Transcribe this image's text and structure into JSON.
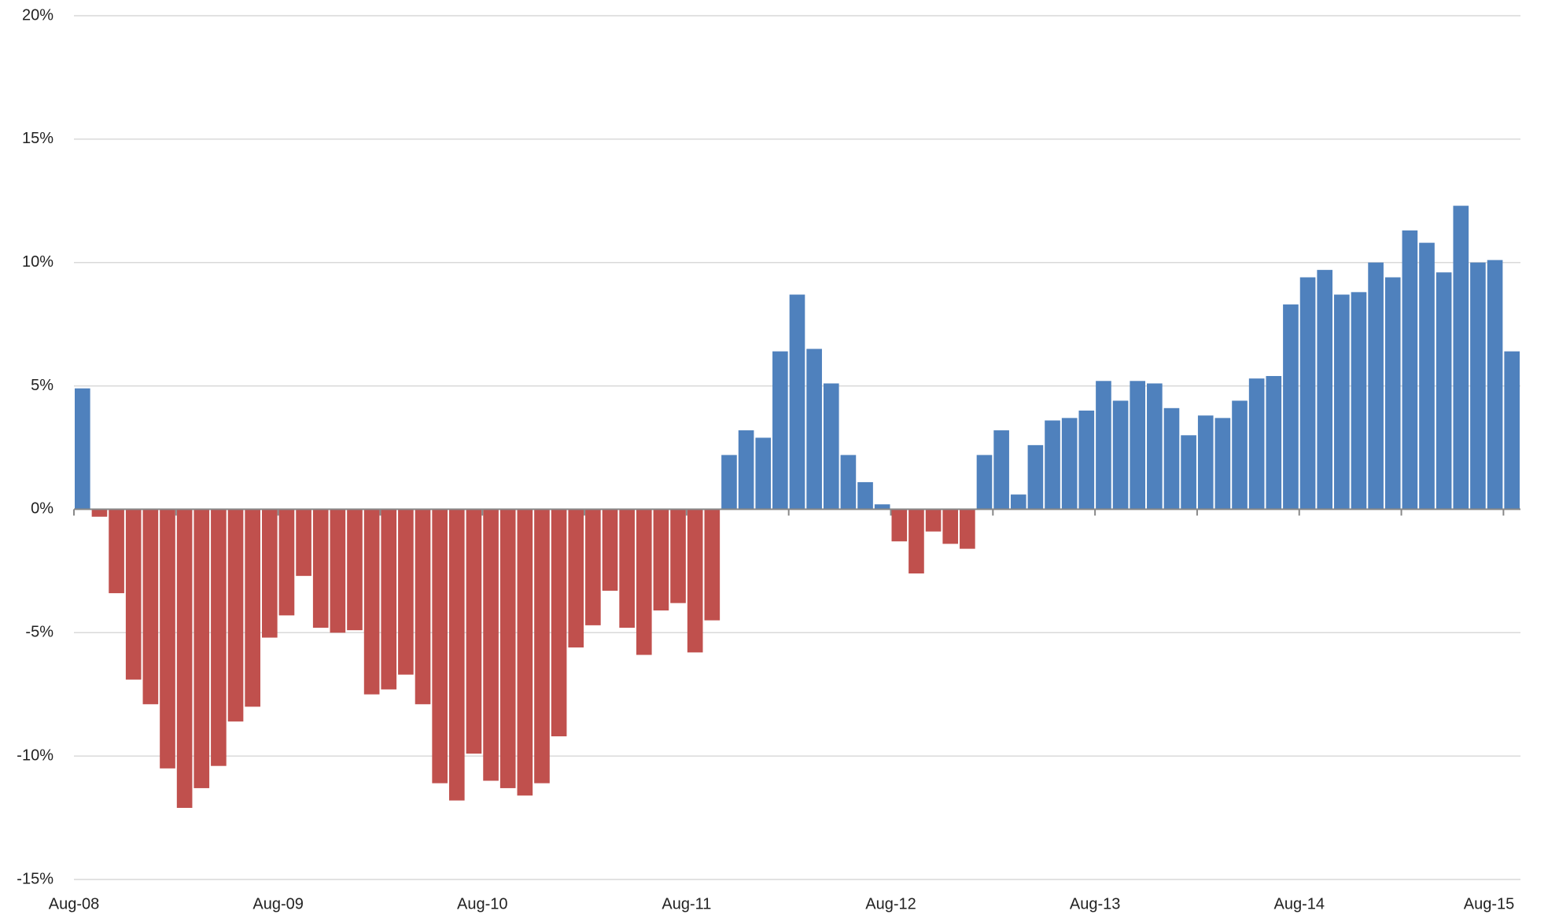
{
  "chart_data": {
    "type": "bar",
    "categories": [
      "Aug-08",
      null,
      null,
      null,
      null,
      null,
      null,
      null,
      null,
      null,
      null,
      null,
      "Aug-09",
      null,
      null,
      null,
      null,
      null,
      null,
      null,
      null,
      null,
      null,
      null,
      "Aug-10",
      null,
      null,
      null,
      null,
      null,
      null,
      null,
      null,
      null,
      null,
      null,
      "Aug-11",
      null,
      null,
      null,
      null,
      null,
      null,
      null,
      null,
      null,
      null,
      null,
      "Aug-12",
      null,
      null,
      null,
      null,
      null,
      null,
      null,
      null,
      null,
      null,
      null,
      "Aug-13",
      null,
      null,
      null,
      null,
      null,
      null,
      null,
      null,
      null,
      null,
      null,
      "Aug-14",
      null,
      null,
      null,
      null,
      null,
      null,
      null,
      null,
      null,
      null,
      null,
      "Aug-15"
    ],
    "values": [
      4.9,
      -0.3,
      -3.4,
      -6.9,
      -7.9,
      -10.5,
      -12.1,
      -11.3,
      -10.4,
      -8.6,
      -8.0,
      -5.2,
      -4.3,
      -2.7,
      -4.8,
      -5.0,
      -4.9,
      -7.5,
      -7.3,
      -6.7,
      -7.9,
      -11.1,
      -11.8,
      -9.9,
      -11.0,
      -11.3,
      -11.6,
      -11.1,
      -9.2,
      -5.6,
      -4.7,
      -3.3,
      -4.8,
      -5.9,
      -4.1,
      -3.8,
      -5.8,
      -4.5,
      2.2,
      3.2,
      2.9,
      6.4,
      8.7,
      6.5,
      5.1,
      2.2,
      1.1,
      0.2,
      -1.3,
      -2.6,
      -0.9,
      -1.4,
      -1.6,
      2.2,
      3.2,
      0.6,
      2.6,
      3.6,
      3.7,
      4.0,
      5.2,
      4.4,
      5.2,
      5.1,
      4.1,
      3.0,
      3.8,
      3.7,
      4.4,
      5.3,
      5.4,
      8.3,
      9.4,
      9.7,
      8.7,
      8.8,
      10.0,
      9.4,
      11.3,
      10.8,
      9.6,
      12.3,
      10.0,
      10.1,
      6.4
    ],
    "positive_color": "#4f81bd",
    "negative_color": "#c0504d",
    "negative_tick_color": "#ff0000",
    "ylim": [
      -15,
      20
    ],
    "yticks": [
      {
        "value": -15,
        "label": "-15%"
      },
      {
        "value": -10,
        "label": "-10%"
      },
      {
        "value": -5,
        "label": "-5%"
      },
      {
        "value": 0,
        "label": "0%"
      },
      {
        "value": 5,
        "label": "5%"
      },
      {
        "value": 10,
        "label": "10%"
      },
      {
        "value": 15,
        "label": "15%"
      },
      {
        "value": 20,
        "label": "20%"
      }
    ],
    "grid": true
  }
}
